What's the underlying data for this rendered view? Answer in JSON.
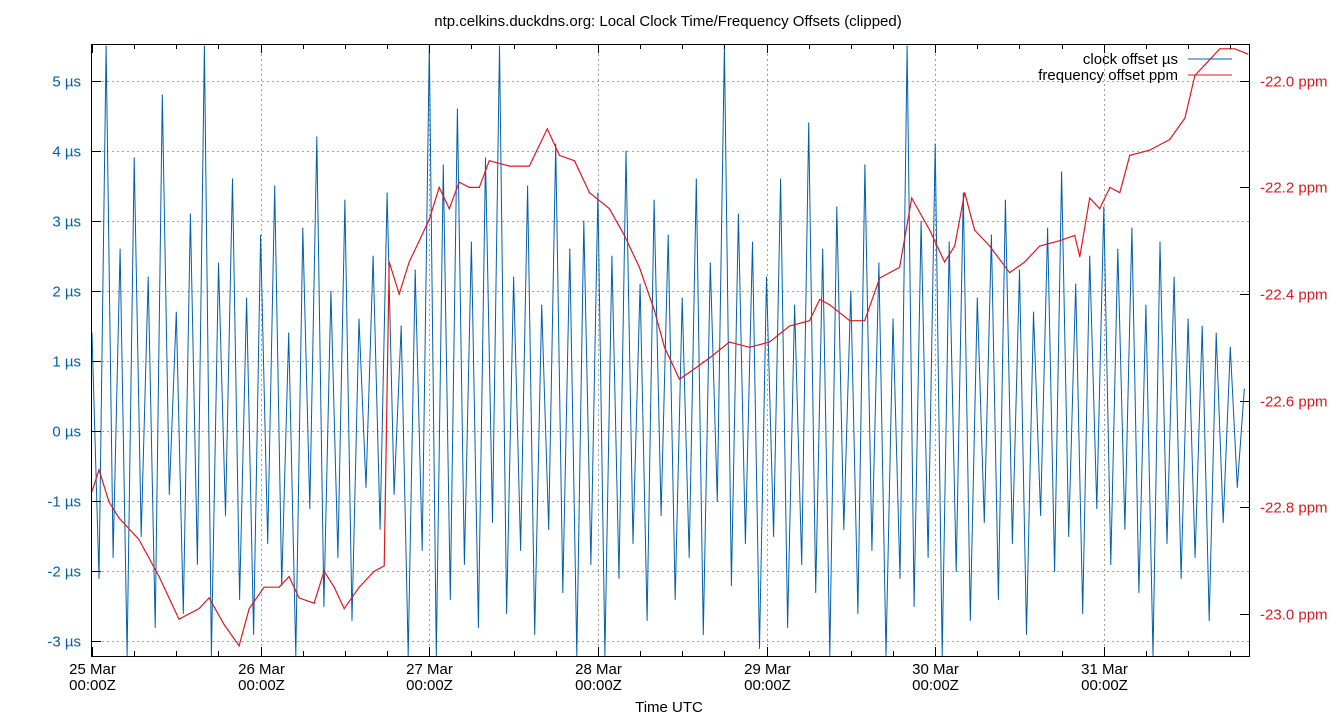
{
  "chart_data": {
    "type": "line",
    "title": "ntp.celkins.duckdns.org: Local Clock Time/Frequency Offsets (clipped)",
    "xlabel": "Time UTC",
    "x_ticks": [
      {
        "at": "25 Mar 00:00",
        "label1": "25 Mar",
        "label2": "00:00Z"
      },
      {
        "at": "26 Mar 00:00",
        "label1": "26 Mar",
        "label2": "00:00Z"
      },
      {
        "at": "27 Mar 00:00",
        "label1": "27 Mar",
        "label2": "00:00Z"
      },
      {
        "at": "28 Mar 00:00",
        "label1": "28 Mar",
        "label2": "00:00Z"
      },
      {
        "at": "29 Mar 00:00",
        "label1": "29 Mar",
        "label2": "00:00Z"
      },
      {
        "at": "30 Mar 00:00",
        "label1": "30 Mar",
        "label2": "00:00Z"
      },
      {
        "at": "31 Mar 00:00",
        "label1": "31 Mar",
        "label2": "00:00Z"
      }
    ],
    "xlim": [
      "25 Mar 00:00",
      "31 Mar 20:40"
    ],
    "y_left": {
      "unit": "µs",
      "ylim": [
        -3.21,
        5.53
      ],
      "ticks": [
        {
          "v": 5,
          "label": "5 µs"
        },
        {
          "v": 4,
          "label": "4 µs"
        },
        {
          "v": 3,
          "label": "3 µs"
        },
        {
          "v": 2,
          "label": "2 µs"
        },
        {
          "v": 1,
          "label": "1 µs"
        },
        {
          "v": 0,
          "label": "0 µs"
        },
        {
          "v": -1,
          "label": "-1 µs"
        },
        {
          "v": -2,
          "label": "-2 µs"
        },
        {
          "v": -3,
          "label": "-3 µs"
        }
      ],
      "color": "#0060ad"
    },
    "y_right": {
      "unit": "ppm",
      "ylim": [
        -23.079,
        -21.931
      ],
      "ticks": [
        {
          "v": -22.0,
          "label": "-22.0 ppm"
        },
        {
          "v": -22.2,
          "label": "-22.2 ppm"
        },
        {
          "v": -22.4,
          "label": "-22.4 ppm"
        },
        {
          "v": -22.6,
          "label": "-22.6 ppm"
        },
        {
          "v": -22.8,
          "label": "-22.8 ppm"
        },
        {
          "v": -23.0,
          "label": "-23.0 ppm"
        }
      ],
      "color": "#dd181f"
    },
    "grid": true,
    "legend_position": "top-right",
    "series": [
      {
        "name": "clock offset µs",
        "axis": "left",
        "color": "#0060ad",
        "time_start": "25 Mar 00:00",
        "time_step_hours": 1,
        "values": [
          1.4,
          -2.1,
          5.5,
          -1.8,
          2.6,
          -3.2,
          3.9,
          -1.5,
          2.2,
          -2.8,
          4.8,
          -0.9,
          1.7,
          -2.6,
          3.1,
          -1.9,
          5.5,
          -3.2,
          2.4,
          -1.2,
          3.6,
          -2.4,
          1.9,
          -2.9,
          2.8,
          -1.6,
          3.5,
          -2.2,
          1.4,
          -3.2,
          2.9,
          -1.1,
          4.2,
          -2.5,
          2.0,
          -1.8,
          3.3,
          -2.7,
          1.6,
          -0.8,
          2.5,
          -1.4,
          3.4,
          -0.9,
          1.5,
          -3.2,
          2.3,
          -1.7,
          5.5,
          -3.2,
          3.8,
          -2.4,
          4.6,
          -1.9,
          2.7,
          -2.8,
          3.9,
          -1.3,
          5.5,
          -2.6,
          2.2,
          -1.7,
          3.5,
          -2.9,
          1.8,
          -1.4,
          4.1,
          -2.3,
          2.6,
          -3.2,
          3.0,
          -1.9,
          3.4,
          -3.2,
          2.5,
          -2.1,
          4.0,
          -1.6,
          2.1,
          -2.7,
          3.3,
          -1.2,
          2.8,
          -2.4,
          1.9,
          -1.8,
          3.6,
          -2.9,
          2.4,
          -1.0,
          5.5,
          -2.2,
          3.1,
          -1.6,
          2.7,
          -3.1,
          2.2,
          -1.5,
          3.6,
          -2.8,
          1.8,
          -1.9,
          4.4,
          -2.3,
          2.6,
          -3.2,
          3.2,
          -1.4,
          2.0,
          -2.6,
          3.8,
          -1.7,
          2.4,
          -3.2,
          1.6,
          -2.1,
          5.5,
          -2.5,
          3.0,
          -1.8,
          4.1,
          -3.2,
          2.7,
          -2.0,
          3.4,
          -2.7,
          1.9,
          -1.3,
          2.8,
          -2.4,
          3.3,
          -1.6,
          2.3,
          -2.9,
          1.7,
          -1.2,
          2.9,
          -2.0,
          3.7,
          -1.5,
          2.1,
          -2.6,
          2.5,
          -1.1,
          3.2,
          -1.9,
          2.6,
          -1.4,
          2.9,
          -2.3,
          1.8,
          -3.2,
          2.7,
          -1.6,
          2.2,
          -2.1,
          1.6,
          -1.8,
          1.5,
          -2.7,
          1.4,
          -1.3,
          1.2,
          -0.8,
          0.6
        ]
      },
      {
        "name": "frequency offset ppm",
        "axis": "right",
        "color": "#dd181f",
        "points": [
          [
            "25 Mar 00:00",
            -22.77
          ],
          [
            "25 Mar 01:00",
            -22.73
          ],
          [
            "25 Mar 02:25",
            -22.79
          ],
          [
            "25 Mar 03:50",
            -22.82
          ],
          [
            "25 Mar 06:40",
            -22.86
          ],
          [
            "25 Mar 09:33",
            -22.93
          ],
          [
            "25 Mar 12:23",
            -23.01
          ],
          [
            "25 Mar 15:14",
            -22.99
          ],
          [
            "25 Mar 16:40",
            -22.97
          ],
          [
            "25 Mar 18:48",
            -23.02
          ],
          [
            "25 Mar 20:56",
            -23.06
          ],
          [
            "25 Mar 22:22",
            -22.99
          ],
          [
            "26 Mar 00:30",
            -22.95
          ],
          [
            "26 Mar 02:38",
            -22.95
          ],
          [
            "26 Mar 04:03",
            -22.93
          ],
          [
            "26 Mar 05:28",
            -22.97
          ],
          [
            "26 Mar 07:37",
            -22.98
          ],
          [
            "26 Mar 09:02",
            -22.92
          ],
          [
            "26 Mar 10:28",
            -22.95
          ],
          [
            "26 Mar 11:54",
            -22.99
          ],
          [
            "26 Mar 14:02",
            -22.95
          ],
          [
            "26 Mar 16:10",
            -22.92
          ],
          [
            "26 Mar 17:35",
            -22.91
          ],
          [
            "26 Mar 18:18",
            -22.34
          ],
          [
            "26 Mar 19:43",
            -22.4
          ],
          [
            "26 Mar 21:09",
            -22.34
          ],
          [
            "26 Mar 22:35",
            -22.3
          ],
          [
            "27 Mar 00:00",
            -22.26
          ],
          [
            "27 Mar 01:25",
            -22.2
          ],
          [
            "27 Mar 02:51",
            -22.24
          ],
          [
            "27 Mar 04:16",
            -22.19
          ],
          [
            "27 Mar 05:41",
            -22.2
          ],
          [
            "27 Mar 07:07",
            -22.2
          ],
          [
            "27 Mar 08:33",
            -22.15
          ],
          [
            "27 Mar 11:24",
            -22.16
          ],
          [
            "27 Mar 14:14",
            -22.16
          ],
          [
            "27 Mar 16:48",
            -22.09
          ],
          [
            "27 Mar 18:31",
            -22.14
          ],
          [
            "27 Mar 20:40",
            -22.15
          ],
          [
            "27 Mar 22:48",
            -22.21
          ],
          [
            "28 Mar 01:38",
            -22.24
          ],
          [
            "28 Mar 03:46",
            -22.29
          ],
          [
            "28 Mar 05:54",
            -22.35
          ],
          [
            "28 Mar 08:02",
            -22.43
          ],
          [
            "28 Mar 09:29",
            -22.5
          ],
          [
            "28 Mar 11:37",
            -22.56
          ],
          [
            "28 Mar 13:45",
            -22.54
          ],
          [
            "28 Mar 15:53",
            -22.52
          ],
          [
            "28 Mar 18:43",
            -22.49
          ],
          [
            "28 Mar 21:34",
            -22.5
          ],
          [
            "29 Mar 00:26",
            -22.49
          ],
          [
            "29 Mar 03:16",
            -22.46
          ],
          [
            "29 Mar 06:07",
            -22.45
          ],
          [
            "29 Mar 07:34",
            -22.41
          ],
          [
            "29 Mar 08:59",
            -22.42
          ],
          [
            "29 Mar 11:50",
            -22.45
          ],
          [
            "29 Mar 13:58",
            -22.45
          ],
          [
            "29 Mar 16:06",
            -22.37
          ],
          [
            "29 Mar 18:56",
            -22.35
          ],
          [
            "29 Mar 20:40",
            -22.22
          ],
          [
            "29 Mar 23:13",
            -22.28
          ],
          [
            "30 Mar 01:21",
            -22.34
          ],
          [
            "30 Mar 02:47",
            -22.31
          ],
          [
            "30 Mar 04:12",
            -22.21
          ],
          [
            "30 Mar 05:37",
            -22.28
          ],
          [
            "30 Mar 07:45",
            -22.31
          ],
          [
            "30 Mar 10:36",
            -22.36
          ],
          [
            "30 Mar 12:45",
            -22.34
          ],
          [
            "30 Mar 14:53",
            -22.31
          ],
          [
            "30 Mar 17:44",
            -22.3
          ],
          [
            "30 Mar 19:52",
            -22.29
          ],
          [
            "30 Mar 20:35",
            -22.33
          ],
          [
            "30 Mar 22:00",
            -22.22
          ],
          [
            "30 Mar 23:25",
            -22.24
          ],
          [
            "31 Mar 00:52",
            -22.2
          ],
          [
            "31 Mar 02:17",
            -22.21
          ],
          [
            "31 Mar 03:42",
            -22.14
          ],
          [
            "31 Mar 06:33",
            -22.13
          ],
          [
            "31 Mar 09:24",
            -22.11
          ],
          [
            "31 Mar 11:33",
            -22.07
          ],
          [
            "31 Mar 12:58",
            -21.99
          ],
          [
            "31 Mar 14:23",
            -21.97
          ],
          [
            "31 Mar 16:31",
            -21.94
          ],
          [
            "31 Mar 18:39",
            -21.94
          ],
          [
            "31 Mar 20:31",
            -21.95
          ]
        ]
      }
    ]
  }
}
